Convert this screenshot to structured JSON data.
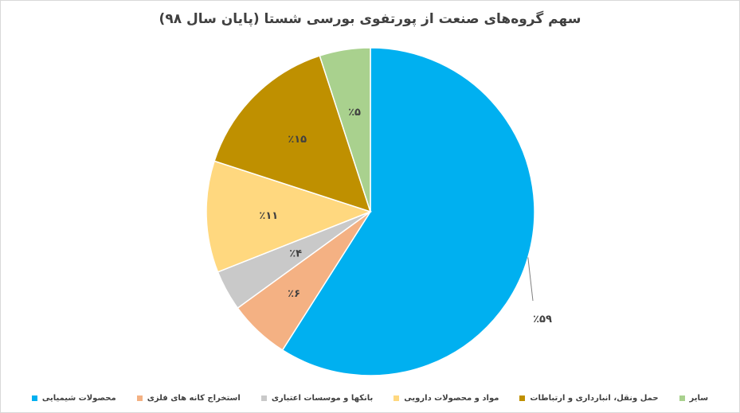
{
  "chart_data": {
    "type": "pie",
    "title": "سهم گروه‌های صنعت از پورتفوی بورسی شستا (پایان سال ۹۸)",
    "slices": [
      {
        "name": "محصولات شیمیایی",
        "value": 59,
        "label": "٪۵۹",
        "color": "#00b0f0"
      },
      {
        "name": "استخراج کانه های فلزی",
        "value": 6,
        "label": "٪۶",
        "color": "#f4b183"
      },
      {
        "name": "بانکها و موسسات اعتباری",
        "value": 4,
        "label": "٪۴",
        "color": "#c9c9c9"
      },
      {
        "name": "مواد و محصولات دارویی",
        "value": 11,
        "label": "٪۱۱",
        "color": "#ffd87f"
      },
      {
        "name": "حمل ونقل، انبارداری و ارتباطات",
        "value": 15,
        "label": "٪۱۵",
        "color": "#bf9000"
      },
      {
        "name": "سایر",
        "value": 5,
        "label": "٪۵",
        "color": "#a9d18e"
      }
    ],
    "legend_position": "bottom"
  }
}
